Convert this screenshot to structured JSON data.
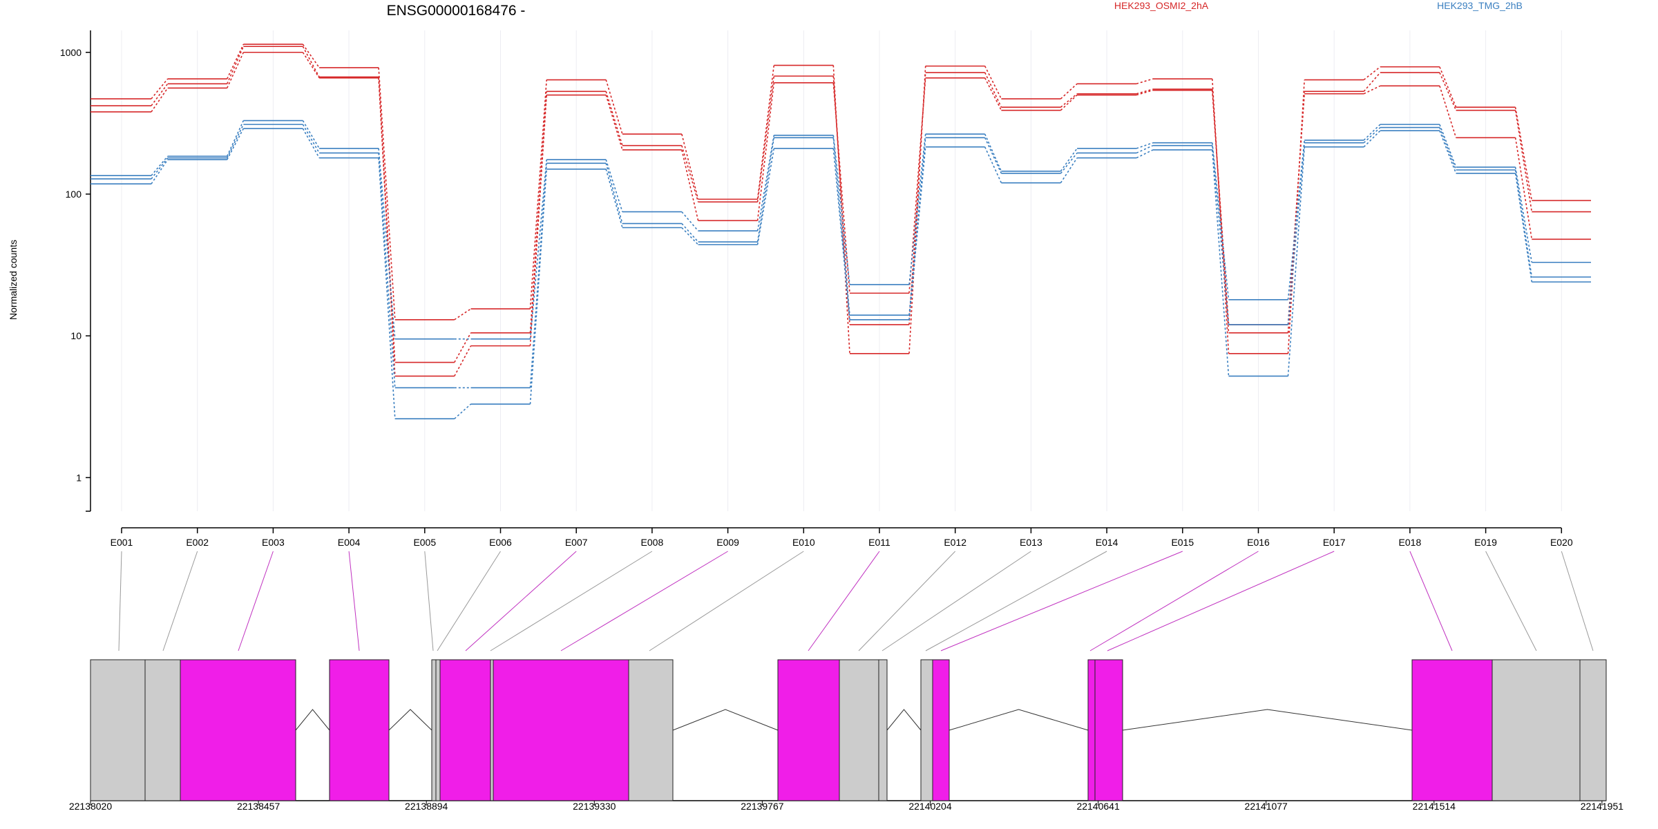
{
  "chart_data": {
    "type": "line",
    "title": "ENSG00000168476 -",
    "xlabel": "",
    "ylabel": "Normalized counts",
    "yscale": "log",
    "ylim": [
      0.4,
      1600
    ],
    "yticks": [
      1,
      10,
      100,
      1000
    ],
    "ytick_labels": [
      "1",
      "10",
      "100",
      "1000"
    ],
    "grid": "vertical-only",
    "legend_position": "top",
    "categories": [
      "E001",
      "E002",
      "E003",
      "E004",
      "E005",
      "E006",
      "E007",
      "E008",
      "E009",
      "E010",
      "E011",
      "E012",
      "E013",
      "E014",
      "E015",
      "E016",
      "E017",
      "E018",
      "E019",
      "E020"
    ],
    "groups": [
      {
        "name": "HEK293_OSMI2_2hA",
        "color": "#d62728"
      },
      {
        "name": "HEK293_TMG_2hB",
        "color": "#3a7fc0"
      }
    ],
    "series": [
      {
        "group": 0,
        "values": [
          470,
          650,
          1140,
          780,
          13,
          15.5,
          640,
          265,
          92,
          810,
          7.5,
          800,
          470,
          600,
          650,
          7.5,
          640,
          790,
          410,
          90
        ]
      },
      {
        "group": 0,
        "values": [
          420,
          600,
          1100,
          670,
          6.5,
          10.5,
          530,
          220,
          88,
          680,
          12,
          720,
          410,
          510,
          550,
          10.5,
          530,
          720,
          390,
          75
        ]
      },
      {
        "group": 0,
        "values": [
          380,
          560,
          1000,
          660,
          5.2,
          8.5,
          500,
          205,
          65,
          610,
          20,
          660,
          390,
          500,
          540,
          12,
          510,
          580,
          250,
          48
        ]
      },
      {
        "group": 1,
        "values": [
          135,
          185,
          330,
          210,
          9.5,
          9.5,
          175,
          75,
          55,
          260,
          23,
          265,
          145,
          210,
          230,
          18,
          240,
          310,
          155,
          33
        ]
      },
      {
        "group": 1,
        "values": [
          128,
          180,
          310,
          195,
          4.3,
          4.3,
          165,
          62,
          46,
          250,
          14,
          250,
          140,
          195,
          220,
          12,
          230,
          295,
          148,
          26
        ]
      },
      {
        "group": 1,
        "values": [
          118,
          175,
          290,
          180,
          2.6,
          3.3,
          150,
          58,
          44,
          210,
          13,
          215,
          120,
          180,
          205,
          5.2,
          215,
          280,
          140,
          24
        ]
      }
    ],
    "gene_model": {
      "tick_labels": [
        "22138020",
        "22138457",
        "22138894",
        "22139330",
        "22139767",
        "22140204",
        "22140641",
        "22141077",
        "22141514",
        "22141951"
      ],
      "exon_colors": {
        "tested": "#f01ee8",
        "other": "#cccccc"
      }
    }
  }
}
